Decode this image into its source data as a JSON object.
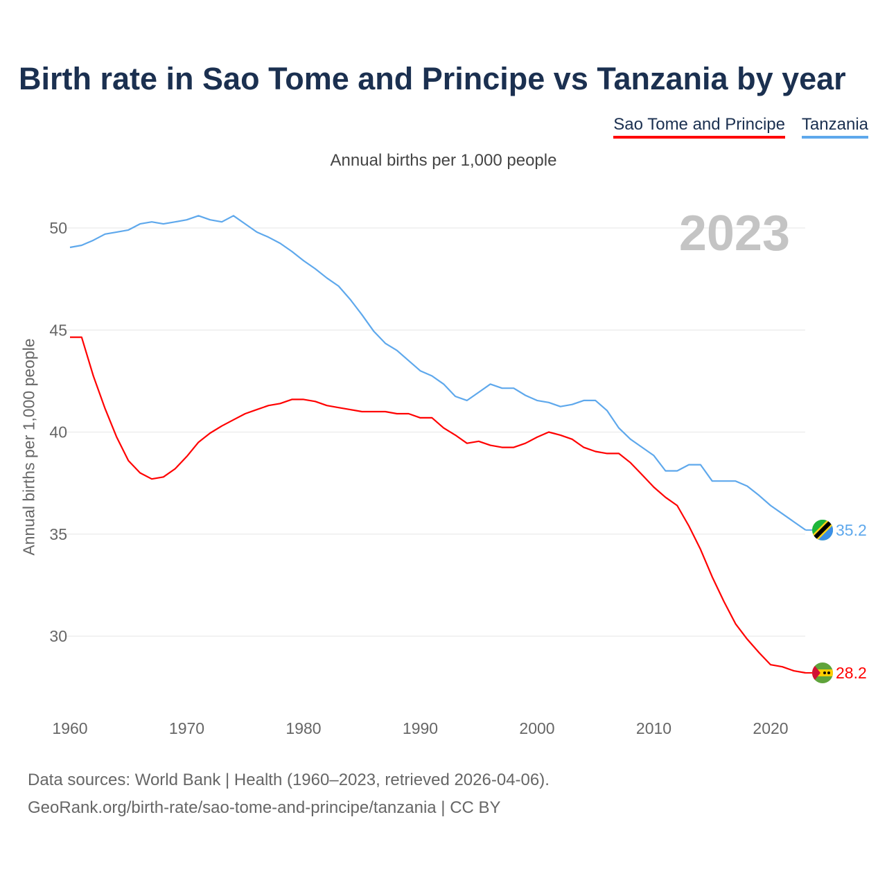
{
  "chart_data": {
    "type": "line",
    "title": "Birth rate in Sao Tome and Principe vs Tanzania by year",
    "subtitle": "Annual births per 1,000 people",
    "ylabel": "Annual births per 1,000 people",
    "xlabel": "",
    "year_label": "2023",
    "xlim": [
      1960,
      2023
    ],
    "ylim": [
      27.5,
      51.5
    ],
    "yticks": [
      30,
      35,
      40,
      45,
      50
    ],
    "xticks": [
      1960,
      1970,
      1980,
      1990,
      2000,
      2010,
      2020
    ],
    "legend_position": "top-right",
    "x": [
      1960,
      1961,
      1962,
      1963,
      1964,
      1965,
      1966,
      1967,
      1968,
      1969,
      1970,
      1971,
      1972,
      1973,
      1974,
      1975,
      1976,
      1977,
      1978,
      1979,
      1980,
      1981,
      1982,
      1983,
      1984,
      1985,
      1986,
      1987,
      1988,
      1989,
      1990,
      1991,
      1992,
      1993,
      1994,
      1995,
      1996,
      1997,
      1998,
      1999,
      2000,
      2001,
      2002,
      2003,
      2004,
      2005,
      2006,
      2007,
      2008,
      2009,
      2010,
      2011,
      2012,
      2013,
      2014,
      2015,
      2016,
      2017,
      2018,
      2019,
      2020,
      2021,
      2022,
      2023
    ],
    "series": [
      {
        "name": "Sao Tome and Principe",
        "color": "#ff0000",
        "end_label": "28.2",
        "values": [
          44.65,
          44.65,
          42.75,
          41.15,
          39.75,
          38.6,
          38.0,
          37.7,
          37.8,
          38.2,
          38.8,
          39.5,
          39.95,
          40.3,
          40.6,
          40.9,
          41.1,
          41.3,
          41.4,
          41.6,
          41.6,
          41.5,
          41.3,
          41.2,
          41.1,
          41.0,
          41.0,
          41.0,
          40.9,
          40.9,
          40.7,
          40.7,
          40.2,
          39.85,
          39.45,
          39.55,
          39.35,
          39.25,
          39.25,
          39.45,
          39.75,
          40.0,
          39.85,
          39.65,
          39.25,
          39.05,
          38.95,
          38.95,
          38.5,
          37.9,
          37.3,
          36.8,
          36.4,
          35.4,
          34.25,
          32.9,
          31.7,
          30.6,
          29.85,
          29.2,
          28.6,
          28.5,
          28.3,
          28.2
        ]
      },
      {
        "name": "Tanzania",
        "color": "#5ea8ec",
        "end_label": "35.2",
        "values": [
          49.05,
          49.15,
          49.4,
          49.7,
          49.8,
          49.9,
          50.2,
          50.3,
          50.2,
          50.3,
          50.4,
          50.6,
          50.4,
          50.3,
          50.6,
          50.2,
          49.8,
          49.55,
          49.25,
          48.85,
          48.4,
          48.0,
          47.55,
          47.15,
          46.5,
          45.75,
          44.95,
          44.35,
          44.0,
          43.5,
          43.0,
          42.75,
          42.35,
          41.75,
          41.55,
          41.95,
          42.35,
          42.15,
          42.15,
          41.8,
          41.55,
          41.45,
          41.25,
          41.35,
          41.55,
          41.55,
          41.05,
          40.2,
          39.65,
          39.25,
          38.85,
          38.1,
          38.1,
          38.4,
          38.4,
          37.6,
          37.6,
          37.6,
          37.35,
          36.9,
          36.4,
          36.0,
          35.6,
          35.2
        ]
      }
    ]
  },
  "footer": {
    "line1": "Data sources: World Bank | Health (1960–2023, retrieved 2026-04-06).",
    "line2": "GeoRank.org/birth-rate/sao-tome-and-principe/tanzania | CC BY"
  }
}
